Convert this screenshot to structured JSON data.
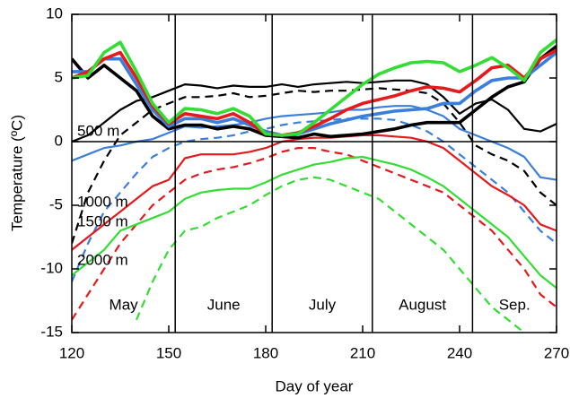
{
  "chart_data": {
    "type": "line",
    "xlabel": "Day of year",
    "ylabel": "Temperature (ºC)",
    "xlim": [
      120,
      270
    ],
    "xticks": [
      120,
      150,
      180,
      210,
      240,
      270
    ],
    "ylim": [
      -15,
      10
    ],
    "yticks": [
      -15,
      -10,
      -5,
      0,
      5,
      10
    ],
    "vlines": [
      152,
      182,
      213,
      244
    ],
    "months": [
      "May",
      "June",
      "July",
      "August",
      "Sep."
    ],
    "annotations": [
      {
        "text": "500 m",
        "color": "#000000"
      },
      {
        "text": "1000 m",
        "color": "#3b7fdc"
      },
      {
        "text": "1500 m",
        "color": "#e41a1c"
      },
      {
        "text": "2000 m",
        "color": "#33dd33"
      }
    ],
    "x": [
      120,
      125,
      130,
      135,
      140,
      145,
      150,
      155,
      160,
      165,
      170,
      175,
      180,
      185,
      190,
      195,
      200,
      205,
      210,
      215,
      220,
      225,
      230,
      235,
      240,
      245,
      250,
      255,
      260,
      265,
      270
    ],
    "series": [
      {
        "color": "#000000",
        "style": "thick",
        "values": [
          6.5,
          5,
          6,
          5,
          4,
          2,
          1,
          1.3,
          1.3,
          1,
          1.2,
          1,
          0.5,
          0.4,
          0.3,
          0.6,
          0.4,
          0.5,
          0.6,
          0.8,
          1,
          1.3,
          1.5,
          1.5,
          1.5,
          2.5,
          3.5,
          4.3,
          4.7,
          6.5,
          7.5
        ]
      },
      {
        "color": "#3b7fdc",
        "style": "thick",
        "values": [
          5.5,
          5.5,
          6.5,
          6.5,
          4.5,
          2.5,
          1.2,
          1.8,
          1.8,
          1.5,
          1.8,
          1.3,
          0.8,
          0.5,
          0.6,
          1,
          1.4,
          1.7,
          2,
          2.2,
          2.4,
          2.5,
          2.6,
          3,
          3,
          4,
          4.8,
          5,
          5,
          6,
          7
        ]
      },
      {
        "color": "#e41a1c",
        "style": "thick",
        "values": [
          5,
          5.5,
          6.5,
          7,
          5,
          2.8,
          1.4,
          2.2,
          2,
          1.8,
          2.2,
          1.5,
          0.6,
          0.5,
          0.7,
          1.2,
          1.8,
          2.5,
          3,
          3.3,
          3.6,
          4,
          4.3,
          4.2,
          3.9,
          4.8,
          5.8,
          6,
          5,
          6.5,
          7.2
        ]
      },
      {
        "color": "#33dd33",
        "style": "thick",
        "values": [
          5,
          5.2,
          7,
          7.8,
          5.5,
          3,
          1.5,
          2.6,
          2.5,
          2.2,
          2.6,
          2,
          0.6,
          0.5,
          0.6,
          1.5,
          2.5,
          3.5,
          4.5,
          5.3,
          5.8,
          6.2,
          6.3,
          6.2,
          5.5,
          6,
          6.6,
          5.8,
          4.8,
          7,
          8
        ]
      },
      {
        "color": "#000000",
        "style": "solid",
        "values": [
          0,
          0.5,
          1.5,
          2.5,
          3.2,
          3.5,
          4,
          4.5,
          4.4,
          4.2,
          4.4,
          4.3,
          4.3,
          4.5,
          4.3,
          4.5,
          4.6,
          4.7,
          4.6,
          4.7,
          4.8,
          4.8,
          4.5,
          3.5,
          2.2,
          3,
          3.3,
          2.5,
          1,
          0.8,
          1.4
        ]
      },
      {
        "color": "#000000",
        "style": "dashed",
        "values": [
          -8,
          -4,
          -1.5,
          0.5,
          1.5,
          2.5,
          3,
          3.5,
          3.5,
          3.6,
          3.8,
          3.5,
          3.6,
          3.8,
          4,
          3.9,
          4,
          4,
          4.1,
          4.2,
          4.1,
          4,
          3.8,
          3,
          1.5,
          -0.3,
          -1,
          -1.5,
          -2.3,
          -4,
          -5
        ]
      },
      {
        "color": "#3b7fdc",
        "style": "solid",
        "values": [
          -1.5,
          -1,
          -0.5,
          -0.3,
          0,
          0.2,
          0.7,
          1.2,
          1.1,
          1.2,
          1.3,
          1.5,
          1.8,
          2,
          2.1,
          2.2,
          2.3,
          2.5,
          2.5,
          2.7,
          2.8,
          2.8,
          2.5,
          2,
          1,
          0.5,
          0,
          -0.5,
          -1.2,
          -2.8,
          -3
        ]
      },
      {
        "color": "#3b7fdc",
        "style": "dashed",
        "values": [
          -11,
          -8,
          -5.5,
          -4,
          -2.5,
          -1.2,
          -0.5,
          0,
          0.2,
          0.3,
          0.5,
          0.8,
          1,
          1.3,
          1.5,
          1.6,
          1.7,
          1.8,
          1.8,
          1.8,
          1.7,
          1.3,
          0.8,
          0,
          -1,
          -2,
          -3,
          -4,
          -5.5,
          -7,
          -8
        ]
      },
      {
        "color": "#e41a1c",
        "style": "solid",
        "values": [
          -8.5,
          -7.5,
          -6.5,
          -5.5,
          -4.5,
          -3.5,
          -3,
          -1.3,
          -1,
          -1,
          -1,
          -0.8,
          -0.5,
          0,
          0.2,
          0.3,
          0.3,
          0.4,
          0.5,
          0.5,
          0.4,
          0.3,
          0,
          -0.5,
          -1.5,
          -2.5,
          -3.5,
          -4.2,
          -5,
          -6.5,
          -7
        ]
      },
      {
        "color": "#e41a1c",
        "style": "dashed",
        "values": [
          -14,
          -12,
          -10,
          -8,
          -6.5,
          -5,
          -4,
          -3,
          -2.5,
          -2.2,
          -2,
          -1.7,
          -1.3,
          -0.8,
          -0.5,
          -0.5,
          -0.8,
          -1,
          -1.5,
          -2,
          -2.5,
          -3,
          -3.5,
          -4,
          -5,
          -6,
          -7,
          -8.5,
          -10,
          -12,
          -13
        ]
      },
      {
        "color": "#33dd33",
        "style": "solid",
        "values": [
          -10.5,
          -9.5,
          -8.5,
          -7,
          -6.5,
          -6,
          -5.5,
          -4.5,
          -4,
          -3.8,
          -3.7,
          -3.7,
          -3.2,
          -2.6,
          -2.2,
          -1.8,
          -1.6,
          -1.3,
          -1.2,
          -1.5,
          -1.8,
          -2.2,
          -2.8,
          -3.5,
          -4.5,
          -5.5,
          -6.5,
          -7.5,
          -9,
          -10.5,
          -11.5
        ]
      },
      {
        "color": "#33dd33",
        "style": "dashed",
        "values": [
          null,
          null,
          null,
          null,
          -14,
          -11,
          -8.5,
          -7,
          -6.7,
          -6,
          -5.5,
          -5,
          -4.2,
          -3.5,
          -3,
          -2.8,
          -3,
          -3.5,
          -4,
          -4.5,
          -5.5,
          -6.5,
          -7.5,
          -8.5,
          -10,
          -11.5,
          -13,
          -14,
          -15,
          null,
          null
        ]
      }
    ]
  }
}
